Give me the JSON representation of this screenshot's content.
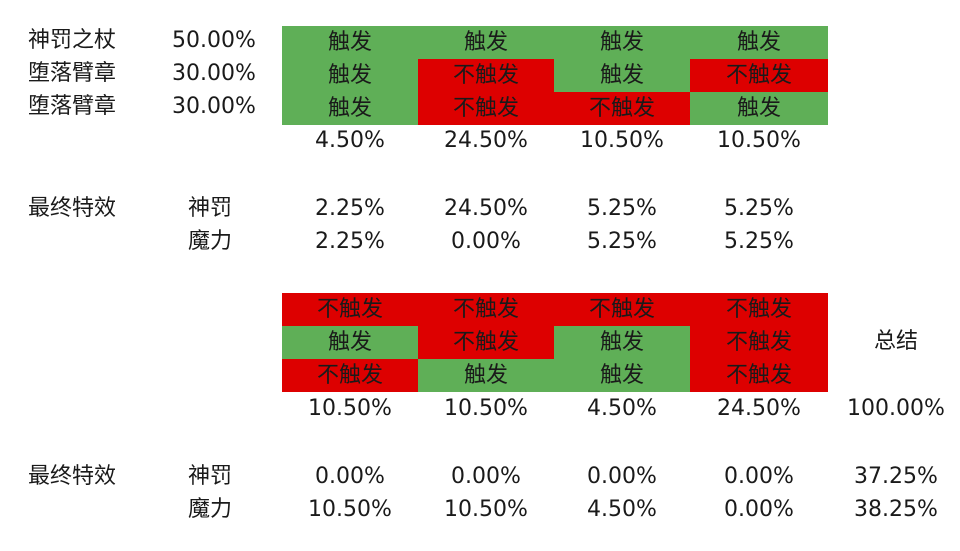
{
  "colors": {
    "triggered": "#5faf57",
    "not_triggered": "#dd0000"
  },
  "items": [
    {
      "name": "神罚之杖",
      "prob": "50.00%"
    },
    {
      "name": "堕落臂章",
      "prob": "30.00%"
    },
    {
      "name": "堕落臂章",
      "prob": "30.00%"
    }
  ],
  "grid1": [
    [
      "触发",
      "触发",
      "触发",
      "触发"
    ],
    [
      "触发",
      "不触发",
      "触发",
      "不触发"
    ],
    [
      "触发",
      "不触发",
      "不触发",
      "触发"
    ]
  ],
  "grid1_probs": [
    "4.50%",
    "24.50%",
    "10.50%",
    "10.50%"
  ],
  "final1": {
    "label": "最终特效",
    "rows": [
      {
        "name": "神罚",
        "values": [
          "2.25%",
          "24.50%",
          "5.25%",
          "5.25%"
        ]
      },
      {
        "name": "魔力",
        "values": [
          "2.25%",
          "0.00%",
          "5.25%",
          "5.25%"
        ]
      }
    ]
  },
  "grid2": [
    [
      "不触发",
      "不触发",
      "不触发",
      "不触发"
    ],
    [
      "触发",
      "不触发",
      "触发",
      "不触发"
    ],
    [
      "不触发",
      "触发",
      "触发",
      "不触发"
    ]
  ],
  "grid2_probs": [
    "10.50%",
    "10.50%",
    "4.50%",
    "24.50%"
  ],
  "summary": {
    "label": "总结",
    "total": "100.00%",
    "shenfa": "37.25%",
    "moli": "38.25%"
  },
  "final2": {
    "label": "最终特效",
    "rows": [
      {
        "name": "神罚",
        "values": [
          "0.00%",
          "0.00%",
          "0.00%",
          "0.00%"
        ]
      },
      {
        "name": "魔力",
        "values": [
          "10.50%",
          "10.50%",
          "4.50%",
          "0.00%"
        ]
      }
    ]
  }
}
